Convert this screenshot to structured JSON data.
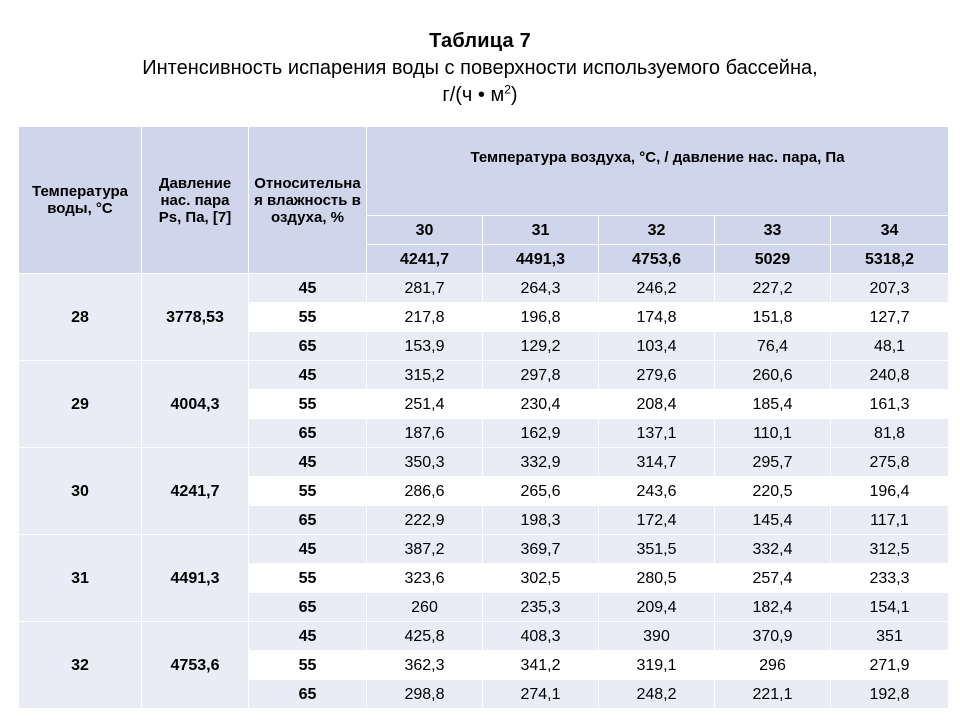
{
  "title": {
    "line1": "Таблица 7",
    "line2": "Интенсивность испарения воды с поверхности используемого бассейна,",
    "line3_main": "г/(ч • м",
    "line3_sup": "2",
    "line3_end": ")"
  },
  "header": {
    "col_water_temp": "Температура воды, °С",
    "col_pressure": "Давление нас. пара Ps, Па, [7]",
    "col_humidity": "Относительная влажность воздуха, %",
    "col_air": "Температура воздуха, °С, / давление нас. пара, Па",
    "air_temps": [
      "30",
      "31",
      "32",
      "33",
      "34"
    ],
    "air_pressures": [
      "4241,7",
      "4491,3",
      "4753,6",
      "5029",
      "5318,2"
    ]
  },
  "groups": [
    {
      "water_temp": "28",
      "pressure": "3778,53",
      "rows": [
        {
          "humidity": "45",
          "values": [
            "281,7",
            "264,3",
            "246,2",
            "227,2",
            "207,3"
          ]
        },
        {
          "humidity": "55",
          "values": [
            "217,8",
            "196,8",
            "174,8",
            "151,8",
            "127,7"
          ]
        },
        {
          "humidity": "65",
          "values": [
            "153,9",
            "129,2",
            "103,4",
            "76,4",
            "48,1"
          ]
        }
      ]
    },
    {
      "water_temp": "29",
      "pressure": "4004,3",
      "rows": [
        {
          "humidity": "45",
          "values": [
            "315,2",
            "297,8",
            "279,6",
            "260,6",
            "240,8"
          ]
        },
        {
          "humidity": "55",
          "values": [
            "251,4",
            "230,4",
            "208,4",
            "185,4",
            "161,3"
          ]
        },
        {
          "humidity": "65",
          "values": [
            "187,6",
            "162,9",
            "137,1",
            "110,1",
            "81,8"
          ]
        }
      ]
    },
    {
      "water_temp": "30",
      "pressure": "4241,7",
      "rows": [
        {
          "humidity": "45",
          "values": [
            "350,3",
            "332,9",
            "314,7",
            "295,7",
            "275,8"
          ]
        },
        {
          "humidity": "55",
          "values": [
            "286,6",
            "265,6",
            "243,6",
            "220,5",
            "196,4"
          ]
        },
        {
          "humidity": "65",
          "values": [
            "222,9",
            "198,3",
            "172,4",
            "145,4",
            "117,1"
          ]
        }
      ]
    },
    {
      "water_temp": "31",
      "pressure": "4491,3",
      "rows": [
        {
          "humidity": "45",
          "values": [
            "387,2",
            "369,7",
            "351,5",
            "332,4",
            "312,5"
          ]
        },
        {
          "humidity": "55",
          "values": [
            "323,6",
            "302,5",
            "280,5",
            "257,4",
            "233,3"
          ]
        },
        {
          "humidity": "65",
          "values": [
            "260",
            "235,3",
            "209,4",
            "182,4",
            "154,1"
          ]
        }
      ]
    },
    {
      "water_temp": "32",
      "pressure": "4753,6",
      "rows": [
        {
          "humidity": "45",
          "values": [
            "425,8",
            "408,3",
            "390",
            "370,9",
            "351"
          ]
        },
        {
          "humidity": "55",
          "values": [
            "362,3",
            "341,2",
            "319,1",
            "296",
            "271,9"
          ]
        },
        {
          "humidity": "65",
          "values": [
            "298,8",
            "274,1",
            "248,2",
            "221,1",
            "192,8"
          ]
        }
      ]
    }
  ],
  "colors": {
    "header_bg": "#cfd5ea",
    "band_bg": "#e9ebf5",
    "row_bg": "#ffffff"
  }
}
